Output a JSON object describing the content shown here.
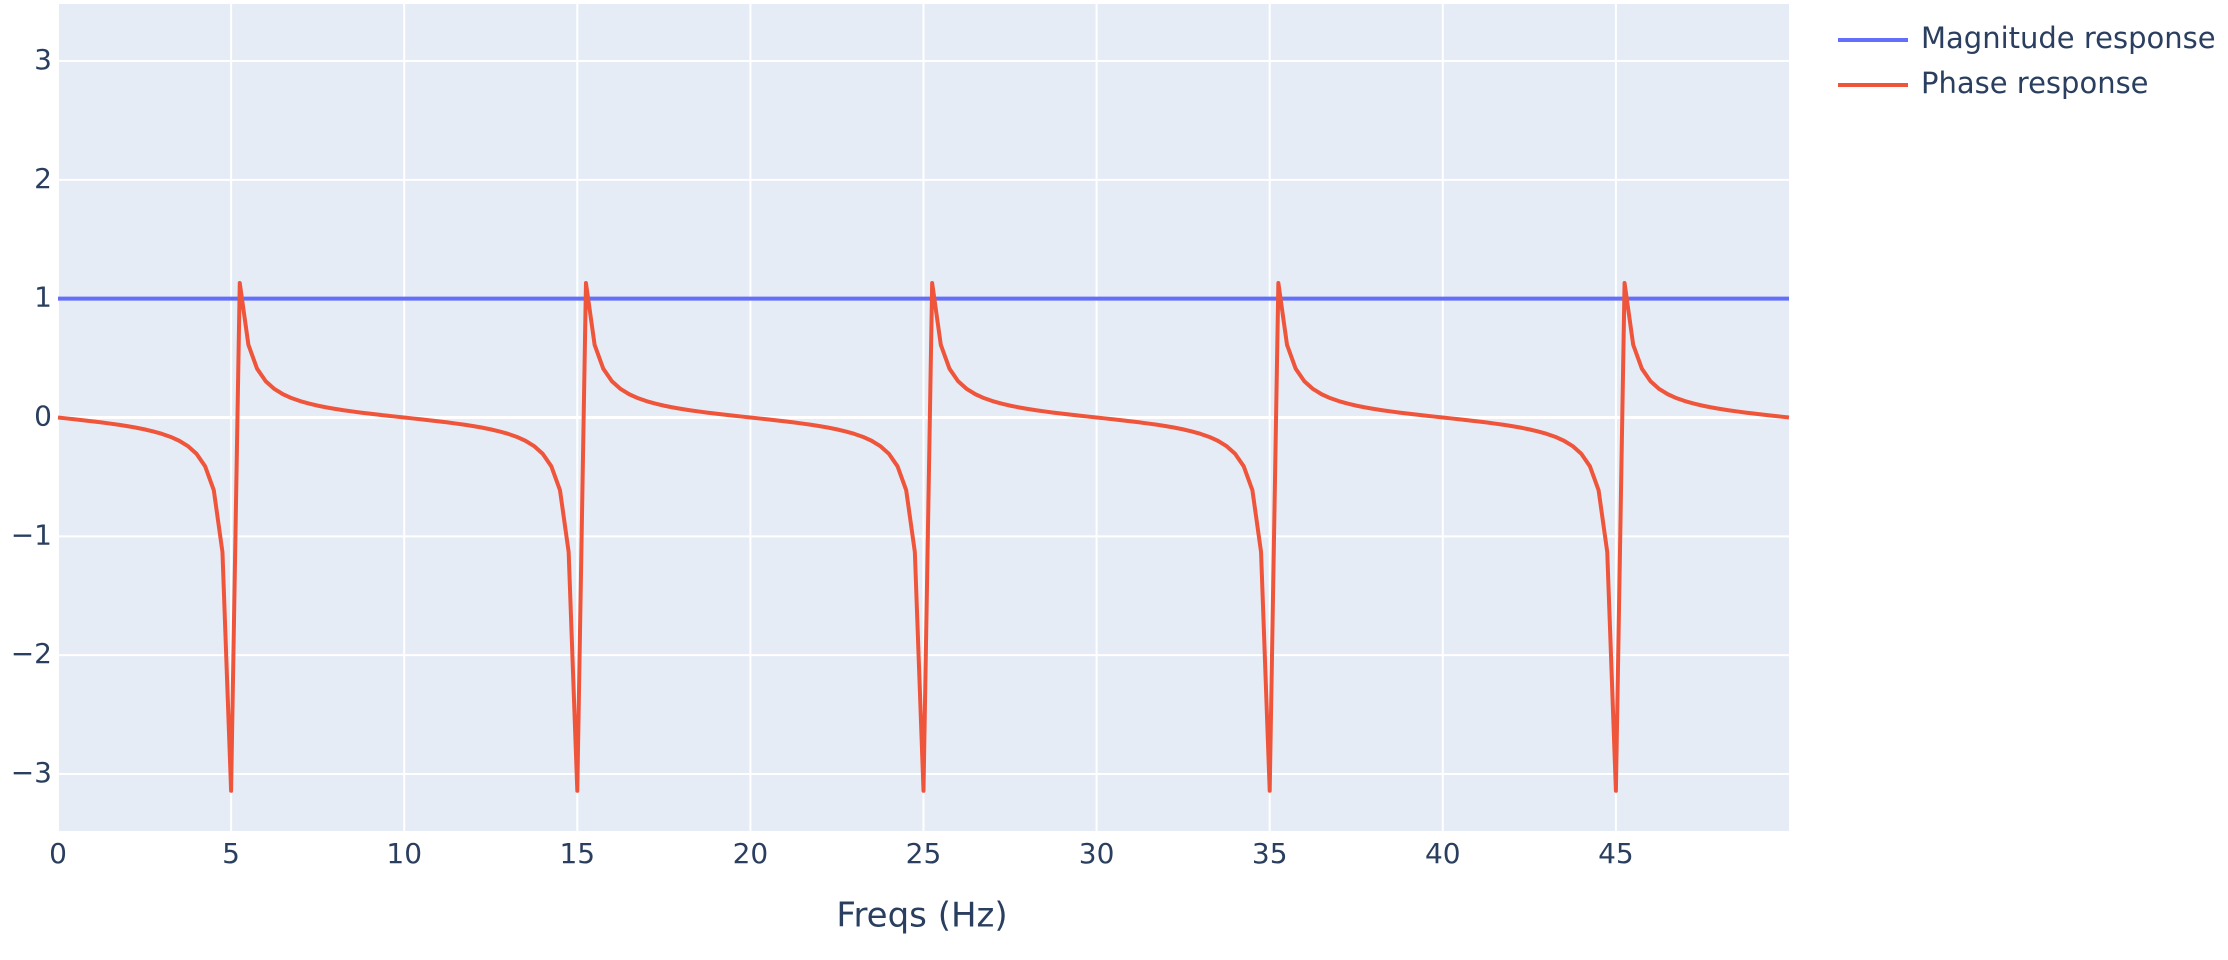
{
  "chart_data": {
    "type": "line",
    "xlabel": "Freqs (Hz)",
    "x": [
      0,
      0.25,
      0.5,
      0.75,
      1,
      1.25,
      1.5,
      1.75,
      2,
      2.25,
      2.5,
      2.75,
      3,
      3.25,
      3.5,
      3.75,
      4,
      4.25,
      4.5,
      4.75,
      5,
      5.25,
      5.5,
      5.75,
      6,
      6.25,
      6.5,
      6.75,
      7,
      7.25,
      7.5,
      7.75,
      8,
      8.25,
      8.5,
      8.75,
      9,
      9.25,
      9.5,
      9.75,
      10,
      10.25,
      10.5,
      10.75,
      11,
      11.25,
      11.5,
      11.75,
      12,
      12.25,
      12.5,
      12.75,
      13,
      13.25,
      13.5,
      13.75,
      14,
      14.25,
      14.5,
      14.75,
      15,
      15.25,
      15.5,
      15.75,
      16,
      16.25,
      16.5,
      16.75,
      17,
      17.25,
      17.5,
      17.75,
      18,
      18.25,
      18.5,
      18.75,
      19,
      19.25,
      19.5,
      19.75,
      20,
      20.25,
      20.5,
      20.75,
      21,
      21.25,
      21.5,
      21.75,
      22,
      22.25,
      22.5,
      22.75,
      23,
      23.25,
      23.5,
      23.75,
      24,
      24.25,
      24.5,
      24.75,
      25,
      25.25,
      25.5,
      25.75,
      26,
      26.25,
      26.5,
      26.75,
      27,
      27.25,
      27.5,
      27.75,
      28,
      28.25,
      28.5,
      28.75,
      29,
      29.25,
      29.5,
      29.75,
      30,
      30.25,
      30.5,
      30.75,
      31,
      31.25,
      31.5,
      31.75,
      32,
      32.25,
      32.5,
      32.75,
      33,
      33.25,
      33.5,
      33.75,
      34,
      34.25,
      34.5,
      34.75,
      35,
      35.25,
      35.5,
      35.75,
      36,
      36.25,
      36.5,
      36.75,
      37,
      37.25,
      37.5,
      37.75,
      38,
      38.25,
      38.5,
      38.75,
      39,
      39.25,
      39.5,
      39.75,
      40,
      40.25,
      40.5,
      40.75,
      41,
      41.25,
      41.5,
      41.75,
      42,
      42.25,
      42.5,
      42.75,
      43,
      43.25,
      43.5,
      43.75,
      44,
      44.25,
      44.5,
      44.75,
      45,
      45.25,
      45.5,
      45.75,
      46,
      46.25,
      46.5,
      46.75,
      47,
      47.25,
      47.5,
      47.75,
      48,
      48.25,
      48.5,
      48.75,
      49,
      49.25,
      49.5,
      49.75,
      50
    ],
    "series": [
      {
        "name": "Magnitude response",
        "color": "#636efa",
        "values": [
          1,
          1,
          1,
          1,
          1,
          1,
          1,
          1,
          1,
          1,
          1,
          1,
          1,
          1,
          1,
          1,
          1,
          1,
          1,
          1,
          1,
          1,
          1,
          1,
          1,
          1,
          1,
          1,
          1,
          1,
          1,
          1,
          1,
          1,
          1,
          1,
          1,
          1,
          1,
          1,
          1,
          1,
          1,
          1,
          1,
          1,
          1,
          1,
          1,
          1,
          1,
          1,
          1,
          1,
          1,
          1,
          1,
          1,
          1,
          1,
          1,
          1,
          1,
          1,
          1,
          1,
          1,
          1,
          1,
          1,
          1,
          1,
          1,
          1,
          1,
          1,
          1,
          1,
          1,
          1,
          1,
          1,
          1,
          1,
          1,
          1,
          1,
          1,
          1,
          1,
          1,
          1,
          1,
          1,
          1,
          1,
          1,
          1,
          1,
          1,
          1,
          1,
          1,
          1,
          1,
          1,
          1,
          1,
          1,
          1,
          1,
          1,
          1,
          1,
          1,
          1,
          1,
          1,
          1,
          1,
          1,
          1,
          1,
          1,
          1,
          1,
          1,
          1,
          1,
          1,
          1,
          1,
          1,
          1,
          1,
          1,
          1,
          1,
          1,
          1,
          1,
          1,
          1,
          1,
          1,
          1,
          1,
          1,
          1,
          1,
          1,
          1,
          1,
          1,
          1,
          1,
          1,
          1,
          1,
          1,
          1,
          1,
          1,
          1,
          1,
          1,
          1,
          1,
          1,
          1,
          1,
          1,
          1,
          1,
          1,
          1,
          1,
          1,
          1,
          1,
          1,
          1,
          1,
          1,
          1,
          1,
          1,
          1,
          1,
          1,
          1,
          1,
          1,
          1,
          1,
          1,
          1,
          1,
          1,
          1,
          1
        ]
      },
      {
        "name": "Phase response",
        "color": "#ef553b",
        "values": [
          0,
          -0.0079,
          -0.0158,
          -0.024,
          -0.0325,
          -0.0414,
          -0.051,
          -0.0613,
          -0.0726,
          -0.0854,
          -0.0999,
          -0.1169,
          -0.1374,
          -0.1628,
          -0.1956,
          -0.2403,
          -0.3054,
          -0.4107,
          -0.6117,
          -1.1318,
          -3.1416,
          1.1318,
          0.6117,
          0.4107,
          0.3054,
          0.2403,
          0.1956,
          0.1628,
          0.1374,
          0.1169,
          0.0999,
          0.0854,
          0.0726,
          0.0613,
          0.051,
          0.0414,
          0.0325,
          0.024,
          0.0158,
          0.0079,
          0,
          -0.0079,
          -0.0158,
          -0.024,
          -0.0325,
          -0.0414,
          -0.051,
          -0.0613,
          -0.0726,
          -0.0854,
          -0.0999,
          -0.1169,
          -0.1374,
          -0.1628,
          -0.1956,
          -0.2403,
          -0.3054,
          -0.4107,
          -0.6117,
          -1.1318,
          -3.1416,
          1.1318,
          0.6117,
          0.4107,
          0.3054,
          0.2403,
          0.1956,
          0.1628,
          0.1374,
          0.1169,
          0.0999,
          0.0854,
          0.0726,
          0.0613,
          0.051,
          0.0414,
          0.0325,
          0.024,
          0.0158,
          0.0079,
          0,
          -0.0079,
          -0.0158,
          -0.024,
          -0.0325,
          -0.0414,
          -0.051,
          -0.0613,
          -0.0726,
          -0.0854,
          -0.0999,
          -0.1169,
          -0.1374,
          -0.1628,
          -0.1956,
          -0.2403,
          -0.3054,
          -0.4107,
          -0.6117,
          -1.1318,
          -3.1416,
          1.1318,
          0.6117,
          0.4107,
          0.3054,
          0.2403,
          0.1956,
          0.1628,
          0.1374,
          0.1169,
          0.0999,
          0.0854,
          0.0726,
          0.0613,
          0.051,
          0.0414,
          0.0325,
          0.024,
          0.0158,
          0.0079,
          0,
          -0.0079,
          -0.0158,
          -0.024,
          -0.0325,
          -0.0414,
          -0.051,
          -0.0613,
          -0.0726,
          -0.0854,
          -0.0999,
          -0.1169,
          -0.1374,
          -0.1628,
          -0.1956,
          -0.2403,
          -0.3054,
          -0.4107,
          -0.6117,
          -1.1318,
          -3.1416,
          1.1318,
          0.6117,
          0.4107,
          0.3054,
          0.2403,
          0.1956,
          0.1628,
          0.1374,
          0.1169,
          0.0999,
          0.0854,
          0.0726,
          0.0613,
          0.051,
          0.0414,
          0.0325,
          0.024,
          0.0158,
          0.0079,
          0,
          -0.0079,
          -0.0158,
          -0.024,
          -0.0325,
          -0.0414,
          -0.051,
          -0.0613,
          -0.0726,
          -0.0854,
          -0.0999,
          -0.1169,
          -0.1374,
          -0.1628,
          -0.1956,
          -0.2403,
          -0.3054,
          -0.4107,
          -0.6117,
          -1.1318,
          -3.1416,
          1.1318,
          0.6117,
          0.4107,
          0.3054,
          0.2403,
          0.1956,
          0.1628,
          0.1374,
          0.1169,
          0.0999,
          0.0854,
          0.0726,
          0.0613,
          0.051,
          0.0414,
          0.0325,
          0.024,
          0.0158,
          0.0079,
          0
        ]
      }
    ],
    "xlim": [
      0,
      50
    ],
    "xticks": [
      0,
      5,
      10,
      15,
      20,
      25,
      30,
      35,
      40,
      45
    ],
    "ylim": [
      -3.48,
      3.48
    ],
    "yticks": [
      {
        "value": -3,
        "label": "−3"
      },
      {
        "value": -2,
        "label": "−2"
      },
      {
        "value": -1,
        "label": "−1"
      },
      0,
      1,
      2,
      3
    ],
    "grid": true,
    "legend": "right",
    "background": "#e5ecf6"
  }
}
